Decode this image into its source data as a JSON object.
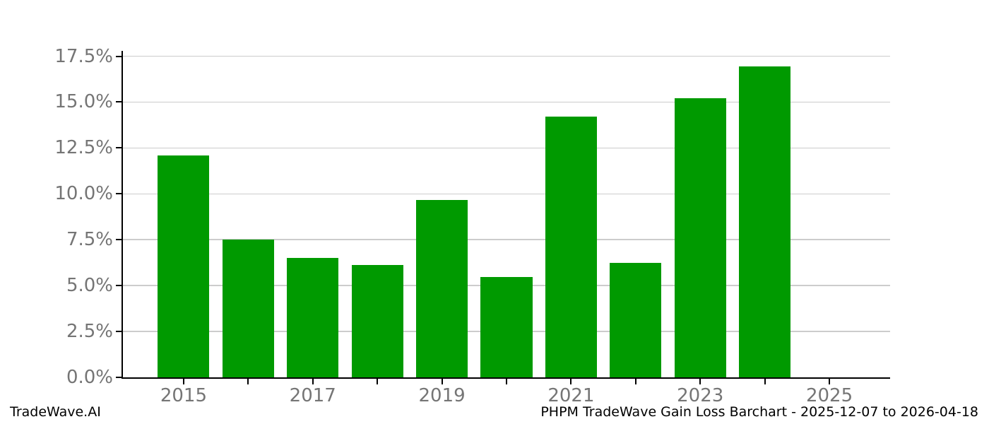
{
  "figure": {
    "background": "#ffffff"
  },
  "footer": {
    "left": "TradeWave.AI",
    "right": "PHPM TradeWave Gain Loss Barchart - 2025-12-07 to 2026-04-18"
  },
  "chart_data": {
    "type": "bar",
    "title": "PHPM TradeWave Gain Loss Barchart - 2025-12-07 to 2026-04-18",
    "watermark": "TradeWave.AI",
    "categories": [
      "2015",
      "2016",
      "2017",
      "2018",
      "2019",
      "2020",
      "2021",
      "2022",
      "2023",
      "2024",
      "2025"
    ],
    "values": [
      12.08,
      7.5,
      6.5,
      6.12,
      9.65,
      5.45,
      14.22,
      6.24,
      15.22,
      16.94,
      0.0
    ],
    "xlabel": "",
    "ylabel": "",
    "ylim": [
      0,
      17.79
    ],
    "yticks": {
      "values": [
        0,
        2.5,
        5,
        7.5,
        10,
        12.5,
        15,
        17.5
      ],
      "labels": [
        "0.0%",
        "2.5%",
        "5.0%",
        "7.5%",
        "10.0%",
        "12.5%",
        "15.0%",
        "17.5%"
      ]
    },
    "xticks": {
      "tick_years": [
        "2015",
        "2016",
        "2017",
        "2018",
        "2019",
        "2020",
        "2021",
        "2022",
        "2023",
        "2024",
        "2025"
      ],
      "labeled_years": [
        "2015",
        "2017",
        "2019",
        "2021",
        "2023",
        "2025"
      ]
    },
    "bar_width_fraction": 0.8,
    "grid": "horizontal",
    "legend": "none",
    "colors": {
      "bar": "#009a00",
      "grid": "#cccccc",
      "axis": "#000000",
      "tick_label": "#757575"
    }
  }
}
